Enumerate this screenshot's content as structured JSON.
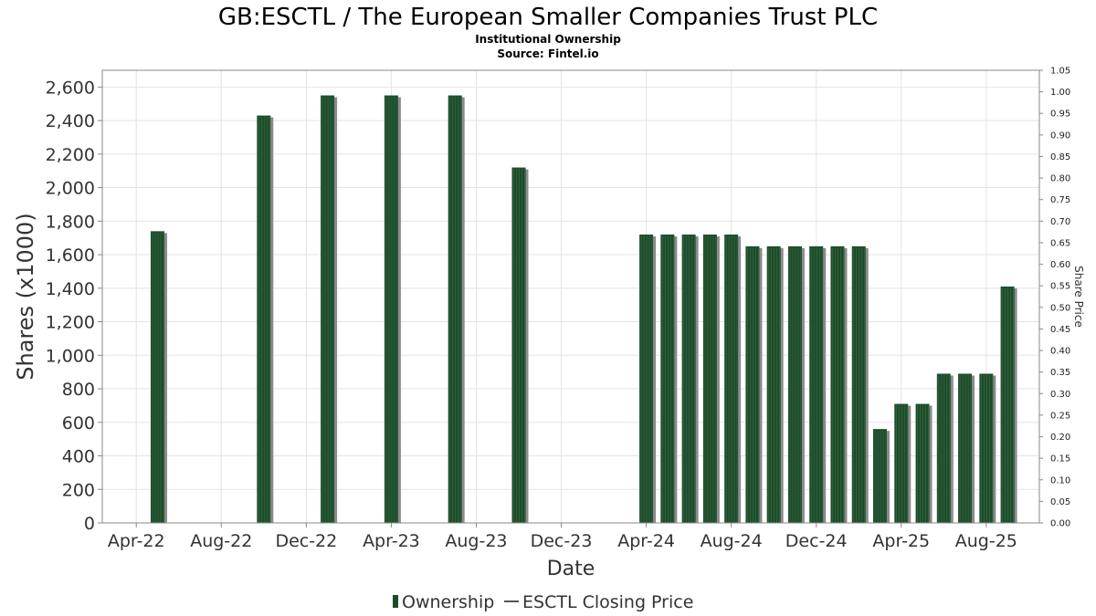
{
  "chart_data": {
    "type": "bar",
    "title": "GB:ESCTL / The European Smaller Companies Trust PLC",
    "subtitle_lines": [
      "Institutional Ownership",
      "Source: Fintel.io"
    ],
    "xlabel": "Date",
    "ylabel": "Shares (x1000)",
    "y2label": "Share Price",
    "ylim": [
      0,
      2700
    ],
    "y2lim": [
      0,
      1.05
    ],
    "y_ticks": [
      "0",
      "200",
      "400",
      "600",
      "800",
      "1,000",
      "1,200",
      "1,400",
      "1,600",
      "1,800",
      "2,000",
      "2,200",
      "2,400",
      "2,600"
    ],
    "y2_ticks": [
      "0.00",
      "0.05",
      "0.10",
      "0.15",
      "0.20",
      "0.25",
      "0.30",
      "0.35",
      "0.40",
      "0.45",
      "0.50",
      "0.55",
      "0.60",
      "0.65",
      "0.70",
      "0.75",
      "0.80",
      "0.85",
      "0.90",
      "0.95",
      "1.00",
      "1.05"
    ],
    "x_ticks": [
      "Apr-22",
      "Aug-22",
      "Dec-22",
      "Apr-23",
      "Aug-23",
      "Dec-23",
      "Apr-24",
      "Aug-24",
      "Dec-24",
      "Apr-25",
      "Aug-25"
    ],
    "grid": true,
    "legend_position": "bottom-center",
    "colors": {
      "bar": "#1e4a2b",
      "bar_stripe": "#2f6b3e",
      "shadow": "#8c8c8c",
      "grid": "#e3e3e3",
      "axis": "#888888"
    },
    "series": [
      {
        "name": "Ownership",
        "points": [
          {
            "x": "2022-05",
            "y": 1740
          },
          {
            "x": "2022-10",
            "y": 2430
          },
          {
            "x": "2023-01",
            "y": 2550
          },
          {
            "x": "2023-04",
            "y": 2550
          },
          {
            "x": "2023-07",
            "y": 2550
          },
          {
            "x": "2023-10",
            "y": 2120
          },
          {
            "x": "2024-04",
            "y": 1720
          },
          {
            "x": "2024-05",
            "y": 1720
          },
          {
            "x": "2024-06",
            "y": 1720
          },
          {
            "x": "2024-07",
            "y": 1720
          },
          {
            "x": "2024-08",
            "y": 1720
          },
          {
            "x": "2024-09",
            "y": 1650
          },
          {
            "x": "2024-10",
            "y": 1650
          },
          {
            "x": "2024-11",
            "y": 1650
          },
          {
            "x": "2024-12",
            "y": 1650
          },
          {
            "x": "2025-01",
            "y": 1650
          },
          {
            "x": "2025-02",
            "y": 1650
          },
          {
            "x": "2025-03",
            "y": 560
          },
          {
            "x": "2025-04",
            "y": 710
          },
          {
            "x": "2025-05",
            "y": 710
          },
          {
            "x": "2025-06",
            "y": 890
          },
          {
            "x": "2025-07",
            "y": 890
          },
          {
            "x": "2025-08",
            "y": 890
          },
          {
            "x": "2025-09",
            "y": 1410
          }
        ]
      },
      {
        "name": "ESCTL Closing Price",
        "points": []
      }
    ]
  }
}
